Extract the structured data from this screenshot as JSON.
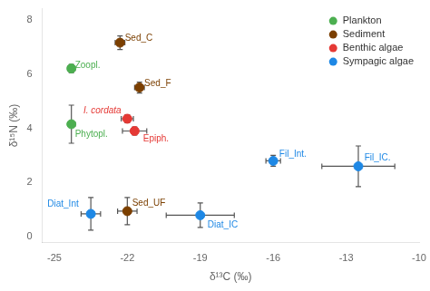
{
  "chart_data": {
    "type": "scatter",
    "x_label": "δ¹³C (‰)",
    "y_label": "δ¹⁵N (‰)",
    "series": [
      {
        "name": "Plankton",
        "color": "#4caf50",
        "x": [
          -24.3,
          -24.3
        ],
        "values": [
          6.2,
          4.15
        ],
        "xerr": [
          0.15,
          0.15
        ],
        "yerr": [
          0.15,
          0.7
        ],
        "point_labels": [
          "Zoopl.",
          "Phytopl."
        ]
      },
      {
        "name": "Sediment",
        "color": "#7B3F00",
        "x": [
          -22.3,
          -21.5,
          -22.0
        ],
        "values": [
          7.15,
          5.5,
          0.95
        ],
        "xerr": [
          0.2,
          0.2,
          0.4
        ],
        "yerr": [
          0.25,
          0.2,
          0.5
        ],
        "point_labels": [
          "Sed_C",
          "Sed_F",
          "Sed_UF"
        ]
      },
      {
        "name": "Benthic algae",
        "color": "#e53935",
        "x": [
          -22.0,
          -21.7
        ],
        "values": [
          4.35,
          3.9
        ],
        "xerr": [
          0.25,
          0.5
        ],
        "yerr": [
          0.15,
          0.15
        ],
        "point_labels": [
          "I. cordata",
          "Epiph."
        ]
      },
      {
        "name": "Sympagic algae",
        "color": "#1e88e5",
        "x": [
          -23.5,
          -19.0,
          -16.0,
          -12.5
        ],
        "values": [
          0.85,
          0.8,
          2.8,
          2.6
        ],
        "xerr": [
          0.4,
          1.4,
          0.3,
          1.5
        ],
        "yerr": [
          0.6,
          0.45,
          0.2,
          0.75
        ],
        "point_labels": [
          "Diat_Int",
          "Diat_IC",
          "Fil_Int.",
          "Fil_IC."
        ]
      }
    ],
    "xlim": [
      -25.5,
      -10
    ],
    "ylim": [
      -0.2,
      8.4
    ],
    "xticks": [
      -25,
      -22,
      -19,
      -16,
      -13,
      -10
    ],
    "yticks": [
      0,
      2,
      4,
      6,
      8
    ],
    "grid": false,
    "legend": "upper right"
  }
}
